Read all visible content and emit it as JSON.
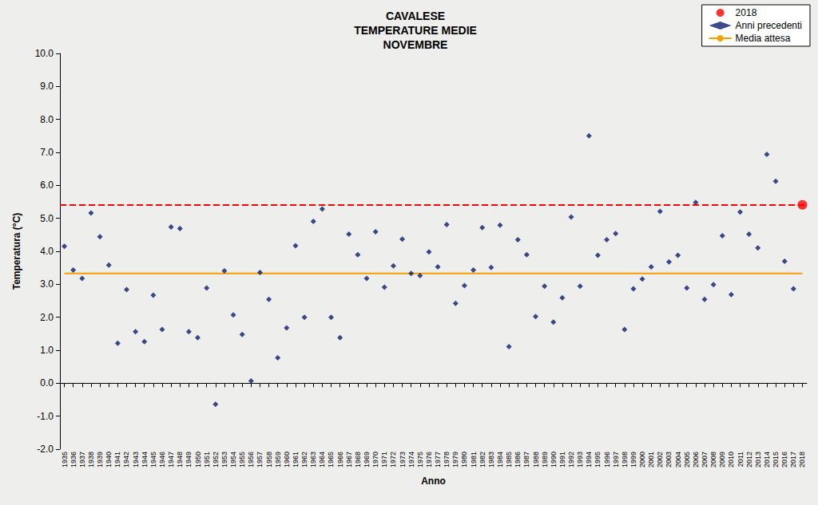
{
  "chart_data": {
    "type": "scatter",
    "title": "CAVALESE\nTEMPERATURE MEDIE\nNOVEMBRE",
    "x_label": "Anno",
    "y_label": "Temperatura (°C)",
    "categories": [
      "1935",
      "1936",
      "1937",
      "1938",
      "1939",
      "1940",
      "1941",
      "1942",
      "1943",
      "1944",
      "1945",
      "1946",
      "1947",
      "1948",
      "1949",
      "1950",
      "1951",
      "1952",
      "1953",
      "1954",
      "1955",
      "1956",
      "1957",
      "1958",
      "1959",
      "1960",
      "1961",
      "1962",
      "1963",
      "1964",
      "1965",
      "1966",
      "1967",
      "1968",
      "1969",
      "1970",
      "1971",
      "1972",
      "1973",
      "1974",
      "1975",
      "1976",
      "1977",
      "1978",
      "1979",
      "1980",
      "1981",
      "1982",
      "1983",
      "1984",
      "1985",
      "1986",
      "1987",
      "1988",
      "1989",
      "1990",
      "1991",
      "1992",
      "1993",
      "1994",
      "1995",
      "1996",
      "1997",
      "1998",
      "1999",
      "2000",
      "2001",
      "2002",
      "2003",
      "2004",
      "2005",
      "2006",
      "2007",
      "2008",
      "2009",
      "2010",
      "2011",
      "2012",
      "2013",
      "2014",
      "2015",
      "2016",
      "2017",
      "2018"
    ],
    "series": [
      {
        "name": "2018",
        "type": "scatter",
        "color": "#ff0000",
        "marker": "circle",
        "line_style": "dashed",
        "values": [
          null,
          null,
          null,
          null,
          null,
          null,
          null,
          null,
          null,
          null,
          null,
          null,
          null,
          null,
          null,
          null,
          null,
          null,
          null,
          null,
          null,
          null,
          null,
          null,
          null,
          null,
          null,
          null,
          null,
          null,
          null,
          null,
          null,
          null,
          null,
          null,
          null,
          null,
          null,
          null,
          null,
          null,
          null,
          null,
          null,
          null,
          null,
          null,
          null,
          null,
          null,
          null,
          null,
          null,
          null,
          null,
          null,
          null,
          null,
          null,
          null,
          null,
          null,
          null,
          null,
          null,
          null,
          null,
          null,
          null,
          null,
          null,
          null,
          null,
          null,
          null,
          null,
          null,
          null,
          null,
          null,
          null,
          null,
          5.41
        ]
      },
      {
        "name": "Anni precedenti",
        "type": "scatter",
        "color": "#0a1e6e",
        "marker": "diamond",
        "values": [
          4.15,
          3.43,
          3.18,
          5.16,
          4.44,
          3.58,
          1.21,
          2.84,
          1.56,
          1.26,
          2.67,
          1.63,
          4.74,
          4.69,
          1.56,
          1.38,
          2.89,
          -0.64,
          3.41,
          2.07,
          1.48,
          0.07,
          3.36,
          2.54,
          0.77,
          1.68,
          4.17,
          2.0,
          4.91,
          5.28,
          2.0,
          1.38,
          4.52,
          3.9,
          3.18,
          4.59,
          2.91,
          3.56,
          4.37,
          3.33,
          3.26,
          3.98,
          3.53,
          4.81,
          2.42,
          2.96,
          3.43,
          4.72,
          3.51,
          4.79,
          1.11,
          4.35,
          3.9,
          2.02,
          2.94,
          1.85,
          2.59,
          5.04,
          2.94,
          7.5,
          3.88,
          4.35,
          4.54,
          1.63,
          2.86,
          3.16,
          3.53,
          5.21,
          3.68,
          3.88,
          2.89,
          5.48,
          2.54,
          2.99,
          4.47,
          2.69,
          5.19,
          4.52,
          4.1,
          6.94,
          6.12,
          3.7,
          2.86,
          null
        ]
      },
      {
        "name": "Media attesa",
        "type": "line",
        "color": "#f5a000",
        "line_style": "solid",
        "values": [
          3.33,
          3.33,
          3.33,
          3.33,
          3.33,
          3.33,
          3.33,
          3.33,
          3.33,
          3.33,
          3.33,
          3.33,
          3.33,
          3.33,
          3.33,
          3.33,
          3.33,
          3.33,
          3.33,
          3.33,
          3.33,
          3.33,
          3.33,
          3.33,
          3.33,
          3.33,
          3.33,
          3.33,
          3.33,
          3.33,
          3.33,
          3.33,
          3.33,
          3.33,
          3.33,
          3.33,
          3.33,
          3.33,
          3.33,
          3.33,
          3.33,
          3.33,
          3.33,
          3.33,
          3.33,
          3.33,
          3.33,
          3.33,
          3.33,
          3.33,
          3.33,
          3.33,
          3.33,
          3.33,
          3.33,
          3.33,
          3.33,
          3.33,
          3.33,
          3.33,
          3.33,
          3.33,
          3.33,
          3.33,
          3.33,
          3.33,
          3.33,
          3.33,
          3.33,
          3.33,
          3.33,
          3.33,
          3.33,
          3.33,
          3.33,
          3.33,
          3.33,
          3.33,
          3.33,
          3.33,
          3.33,
          3.33,
          3.33,
          3.33
        ]
      }
    ],
    "ylim": [
      -2,
      10
    ],
    "yticks": [
      {
        "value": -2,
        "label": "-2.0"
      },
      {
        "value": -1,
        "label": "-1.0"
      },
      {
        "value": 0,
        "label": "0.0"
      },
      {
        "value": 1,
        "label": "1.0"
      },
      {
        "value": 2,
        "label": "2.0"
      },
      {
        "value": 3,
        "label": "3.0"
      },
      {
        "value": 4,
        "label": "4.0"
      },
      {
        "value": 5,
        "label": "5.0"
      },
      {
        "value": 6,
        "label": "6.0"
      },
      {
        "value": 7,
        "label": "7.0"
      },
      {
        "value": 8,
        "label": "8.0"
      },
      {
        "value": 9,
        "label": "9.0"
      },
      {
        "value": 10,
        "label": "10.0"
      }
    ],
    "grid": false,
    "legend": "top-right"
  }
}
